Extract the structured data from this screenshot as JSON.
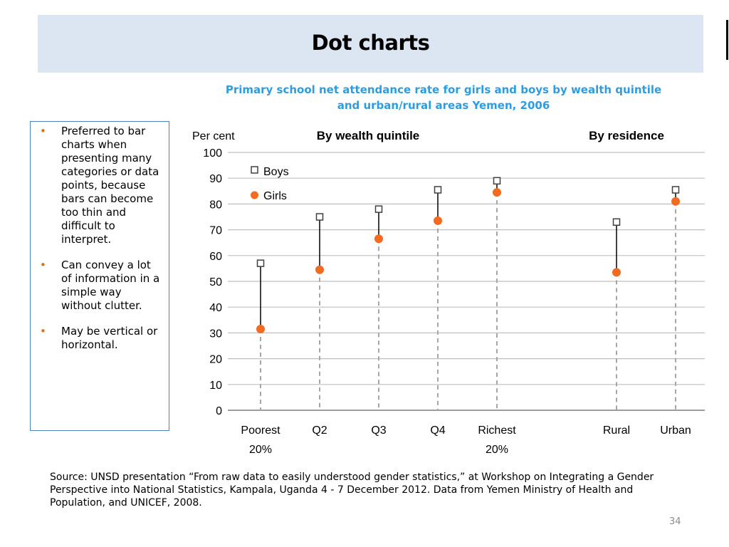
{
  "slide": {
    "title": "Dot charts",
    "page_number": "34",
    "source_text": "Source: UNSD presentation “From raw data to easily understood gender statistics,” at Workshop on Integrating a Gender Perspective into National Statistics, Kampala, Uganda 4 - 7 December 2012. Data from Yemen Ministry of Health and Population, and UNICEF, 2008."
  },
  "sidebar": {
    "bullets": [
      "Preferred to bar charts when presenting many categories or data points, because bars can become too thin and difficult to interpret.",
      "Can convey a lot of information in a simple way without clutter.",
      "May be vertical or horizontal."
    ]
  },
  "chart_data": {
    "type": "scatter",
    "title": "Primary school net attendance rate for girls and boys by wealth quintile and urban/rural areas Yemen, 2006",
    "ylabel": "Per cent",
    "ylim": [
      0,
      100
    ],
    "yticks": [
      0,
      10,
      20,
      30,
      40,
      50,
      60,
      70,
      80,
      90,
      100
    ],
    "grid": true,
    "legend_position": "top-left",
    "groups": [
      {
        "label": "By wealth quintile",
        "categories": [
          "Poorest 20%",
          "Q2",
          "Q3",
          "Q4",
          "Richest 20%"
        ]
      },
      {
        "label": "By residence",
        "categories": [
          "Rural",
          "Urban"
        ]
      }
    ],
    "categories": [
      {
        "line1": "Poorest",
        "line2": "20%"
      },
      {
        "line1": "Q2",
        "line2": ""
      },
      {
        "line1": "Q3",
        "line2": ""
      },
      {
        "line1": "Q4",
        "line2": ""
      },
      {
        "line1": "Richest",
        "line2": "20%"
      },
      {
        "line1": "Rural",
        "line2": ""
      },
      {
        "line1": "Urban",
        "line2": ""
      }
    ],
    "series": [
      {
        "name": "Boys",
        "marker": "open-square",
        "color": "#404040",
        "values": [
          57,
          75,
          78,
          85.5,
          89,
          73,
          85.5
        ]
      },
      {
        "name": "Girls",
        "marker": "filled-circle",
        "color": "#f26b21",
        "values": [
          31.5,
          54.5,
          66.5,
          73.5,
          84.5,
          53.5,
          81
        ]
      }
    ]
  }
}
